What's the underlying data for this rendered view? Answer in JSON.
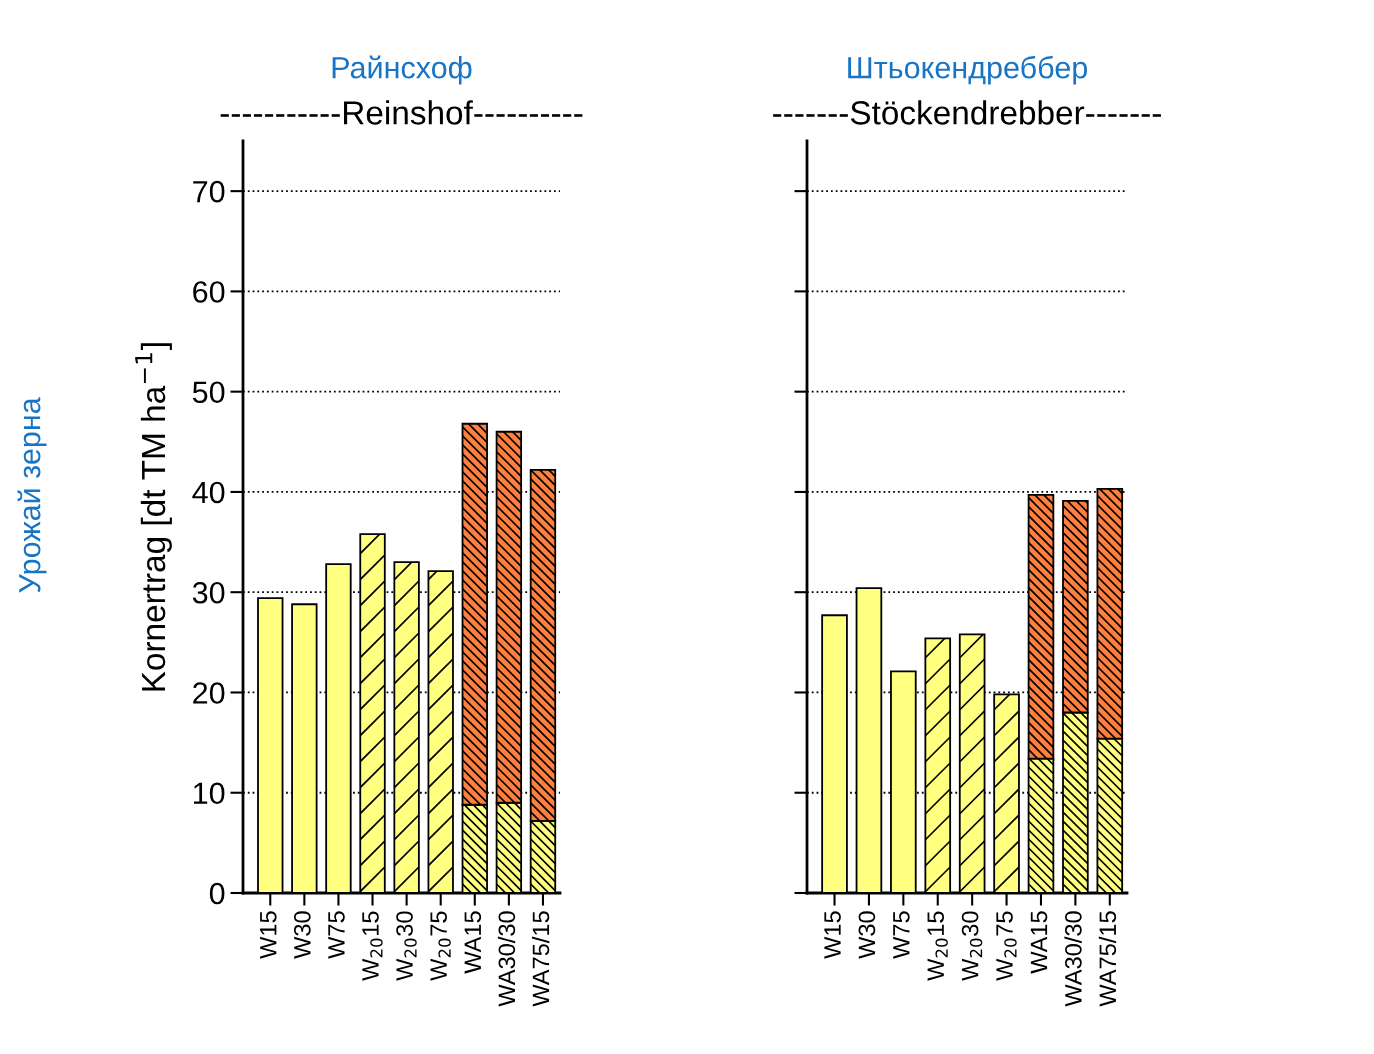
{
  "chart_data": [
    {
      "type": "bar",
      "title": "-----------Reinshof----------",
      "ylabel": "Kornertrag [dt TM ha$^{−1}$]",
      "annotations": [
        "Райнсхоф",
        "Урожай зерна"
      ],
      "categories": [
        "W15",
        "W30",
        "W75",
        "W$_{20}$15",
        "W$_{20}$30",
        "W$_{20}$75",
        "WA15",
        "WA30/30",
        "WA75/15"
      ],
      "stacked": true,
      "ylim": [
        0,
        75
      ],
      "yticks": [
        0,
        10,
        20,
        30,
        40,
        50,
        60,
        70
      ],
      "grid": "y",
      "line_style": "dotted",
      "series": [
        {
          "color": "#ffff80",
          "values": [
            29.4,
            28.8,
            32.8,
            35.8,
            33.0,
            32.1,
            8.8,
            9.0,
            7.2
          ]
        },
        {
          "color": "#ff7f3f",
          "values": [
            null,
            null,
            null,
            null,
            null,
            null,
            38.0,
            37.0,
            35.0
          ]
        }
      ]
    },
    {
      "type": "bar",
      "title": "-------Stöckendrebber-------",
      "annotations": [
        "Штьокендреббер"
      ],
      "categories": [
        "W15",
        "W30",
        "W75",
        "W$_{20}$15",
        "W$_{20}$30",
        "W$_{20}$75",
        "WA15",
        "WA30/30",
        "WA75/15"
      ],
      "stacked": true,
      "ylim": [
        0,
        75
      ],
      "yticks": [
        0,
        10,
        20,
        30,
        40,
        50,
        60,
        70
      ],
      "grid": "y",
      "line_style": "dotted",
      "tick_labels": "x",
      "series": [
        {
          "color": "#ffff80",
          "values": [
            27.7,
            30.4,
            22.1,
            25.4,
            25.8,
            19.8,
            13.4,
            18.0,
            15.4
          ]
        },
        {
          "color": "#ff7f3f",
          "values": [
            null,
            null,
            null,
            null,
            null,
            null,
            26.3,
            21.1,
            24.9
          ]
        }
      ]
    }
  ]
}
